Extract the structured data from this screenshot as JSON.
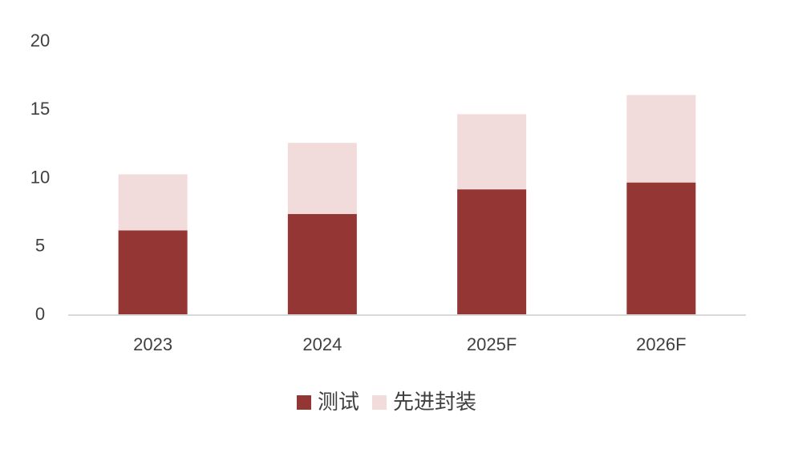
{
  "chart_data": {
    "type": "stacked_bar",
    "categories": [
      "2023",
      "2024",
      "2025F",
      "2026F"
    ],
    "series": [
      {
        "name": "测试",
        "color": "#943634",
        "values": [
          6.2,
          7.4,
          9.2,
          9.7
        ]
      },
      {
        "name": "先进封装",
        "color": "#f2dcdb",
        "values": [
          4.1,
          5.2,
          5.5,
          6.4
        ]
      }
    ],
    "ylim": [
      0,
      20
    ],
    "yticks": [
      0,
      5,
      10,
      15,
      20
    ],
    "grid": false,
    "legend": "bottom"
  }
}
